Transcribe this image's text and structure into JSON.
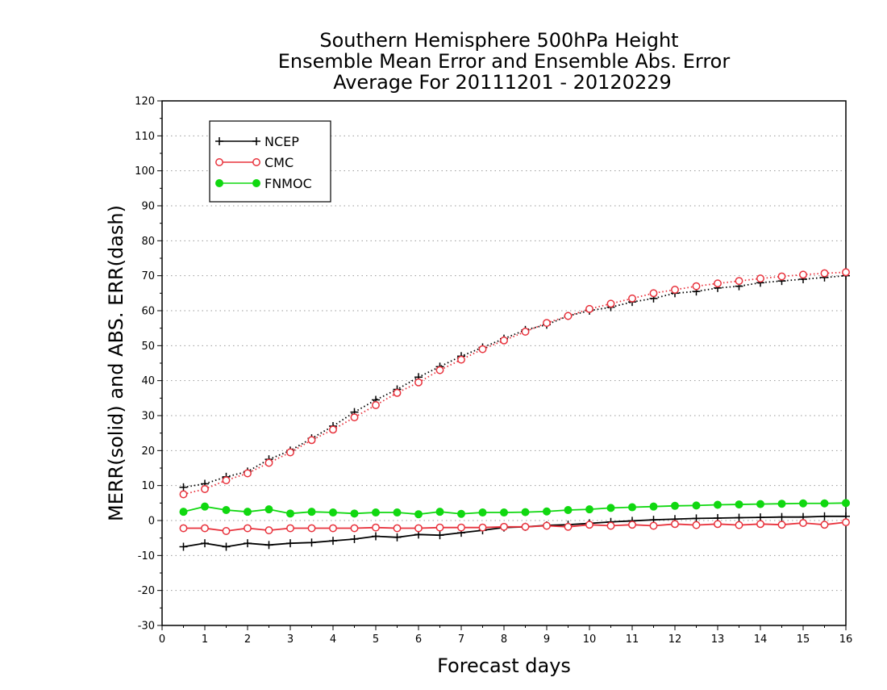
{
  "chart_data": {
    "type": "line",
    "title": [
      "Southern Hemisphere 500hPa Height",
      "Ensemble Mean Error and Ensemble Abs. Error",
      "Average For 20111201 - 20120229"
    ],
    "xlabel": "Forecast days",
    "ylabel": "MERR(solid) and ABS. ERR(dash)",
    "xlim": [
      0,
      16
    ],
    "ylim": [
      -30,
      120
    ],
    "xticks": [
      0,
      1,
      2,
      3,
      4,
      5,
      6,
      7,
      8,
      9,
      10,
      11,
      12,
      13,
      14,
      15,
      16
    ],
    "yticks": [
      -30,
      -20,
      -10,
      0,
      10,
      20,
      30,
      40,
      50,
      60,
      70,
      80,
      90,
      100,
      110,
      120
    ],
    "grid": "horizontal dotted",
    "legend_position": "top-left",
    "x": [
      0.5,
      1,
      1.5,
      2,
      2.5,
      3,
      3.5,
      4,
      4.5,
      5,
      5.5,
      6,
      6.5,
      7,
      7.5,
      8,
      8.5,
      9,
      9.5,
      10,
      10.5,
      11,
      11.5,
      12,
      12.5,
      13,
      13.5,
      14,
      14.5,
      15,
      15.5,
      16
    ],
    "series": [
      {
        "name": "NCEP",
        "color": "#000000",
        "marker": "plus",
        "merr": [
          -7.5,
          -6.5,
          -7.5,
          -6.5,
          -7,
          -6.5,
          -6.3,
          -5.8,
          -5.3,
          -4.5,
          -4.8,
          -4,
          -4.2,
          -3.5,
          -2.8,
          -2,
          -1.8,
          -1.4,
          -1.2,
          -0.8,
          -0.4,
          -0.1,
          0.2,
          0.4,
          0.6,
          0.7,
          0.8,
          0.9,
          1.0,
          1.0,
          1.2,
          1.2
        ],
        "abs_err": [
          9.5,
          10.5,
          12.5,
          14,
          17.5,
          20,
          23.5,
          27,
          31,
          34.5,
          37.5,
          41,
          44,
          47,
          49.5,
          52,
          54.5,
          56,
          58.5,
          60,
          61,
          62.5,
          63.5,
          65,
          65.5,
          66.5,
          67,
          68,
          68.5,
          69,
          69.5,
          70
        ]
      },
      {
        "name": "CMC",
        "color": "#e8323c",
        "marker": "open-circle",
        "merr": [
          -2.2,
          -2.2,
          -3,
          -2.2,
          -2.8,
          -2.2,
          -2.2,
          -2.2,
          -2.2,
          -2,
          -2.2,
          -2.2,
          -2,
          -2,
          -2,
          -1.8,
          -1.8,
          -1.5,
          -1.8,
          -1.2,
          -1.5,
          -1.2,
          -1.5,
          -1,
          -1.3,
          -1,
          -1.3,
          -1,
          -1.2,
          -0.7,
          -1.2,
          -0.5
        ],
        "abs_err": [
          7.5,
          9,
          11.5,
          13.5,
          16.5,
          19.5,
          23,
          26,
          29.5,
          33,
          36.5,
          39.5,
          43,
          46,
          49,
          51.5,
          54,
          56.5,
          58.5,
          60.5,
          62,
          63.5,
          65,
          66,
          67,
          67.8,
          68.5,
          69.2,
          69.8,
          70.3,
          70.7,
          71
        ]
      },
      {
        "name": "FNMOC",
        "color": "#10d810",
        "marker": "filled-circle",
        "merr": [
          2.5,
          4,
          3,
          2.5,
          3.2,
          2,
          2.5,
          2.3,
          2,
          2.3,
          2.3,
          1.8,
          2.5,
          1.9,
          2.3,
          2.3,
          2.4,
          2.6,
          3,
          3.2,
          3.6,
          3.8,
          4,
          4.2,
          4.3,
          4.5,
          4.6,
          4.7,
          4.8,
          4.9,
          4.9,
          5
        ]
      }
    ]
  }
}
